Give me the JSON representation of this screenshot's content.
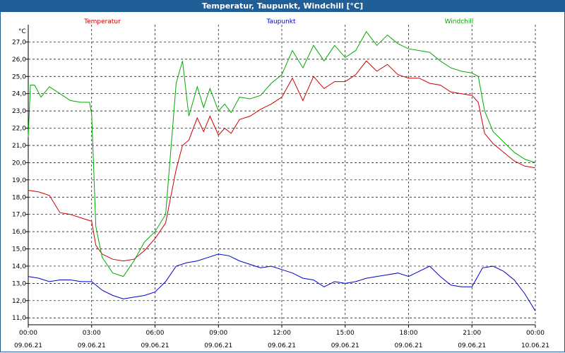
{
  "window": {
    "title": "Temperatur, Taupunkt, Windchill [°C]"
  },
  "colors": {
    "titlebar": "#1f5e96",
    "temperatur": "#cc0000",
    "taupunkt": "#0000cc",
    "windchill": "#00aa00",
    "grid": "#000000"
  },
  "chart_data": {
    "type": "line",
    "title": "Temperatur, Taupunkt, Windchill [°C]",
    "ylabel": "°C",
    "xlabel": "",
    "ylim": [
      10.6,
      28.0
    ],
    "xlim": [
      0,
      24
    ],
    "grid": true,
    "legend_position": "top",
    "y_ticks": [
      "11,0",
      "12,0",
      "13,0",
      "14,0",
      "15,0",
      "16,0",
      "17,0",
      "18,0",
      "19,0",
      "20,0",
      "21,0",
      "22,0",
      "23,0",
      "24,0",
      "25,0",
      "26,0",
      "27,0"
    ],
    "x_ticks": [
      {
        "time": "00:00",
        "date": "09.06.21"
      },
      {
        "time": "03:00",
        "date": "09.06.21"
      },
      {
        "time": "06:00",
        "date": "09.06.21"
      },
      {
        "time": "09:00",
        "date": "09.06.21"
      },
      {
        "time": "12:00",
        "date": "09.06.21"
      },
      {
        "time": "15:00",
        "date": "09.06.21"
      },
      {
        "time": "18:00",
        "date": "09.06.21"
      },
      {
        "time": "21:00",
        "date": "09.06.21"
      },
      {
        "time": "00:00",
        "date": "10.06.21"
      }
    ],
    "series": [
      {
        "name": "Temperatur",
        "color": "#cc0000",
        "x": [
          0,
          0.5,
          1,
          1.5,
          2,
          2.5,
          3,
          3.2,
          3.5,
          4,
          4.5,
          5,
          5.5,
          6,
          6.5,
          7,
          7.3,
          7.6,
          8,
          8.3,
          8.6,
          9,
          9.3,
          9.6,
          10,
          10.5,
          11,
          11.5,
          12,
          12.5,
          13,
          13.5,
          14,
          14.5,
          15,
          15.5,
          16,
          16.5,
          17,
          17.5,
          18,
          18.5,
          19,
          19.5,
          20,
          20.5,
          21,
          21.3,
          21.6,
          22,
          22.5,
          23,
          23.5,
          24
        ],
        "values": [
          18.4,
          18.3,
          18.1,
          17.1,
          17.0,
          16.8,
          16.6,
          15.2,
          14.7,
          14.4,
          14.3,
          14.4,
          14.9,
          15.6,
          16.5,
          19.6,
          21.0,
          21.3,
          22.6,
          21.8,
          22.7,
          21.6,
          22.0,
          21.7,
          22.5,
          22.7,
          23.1,
          23.4,
          23.8,
          24.9,
          23.6,
          25.0,
          24.3,
          24.7,
          24.7,
          25.1,
          25.9,
          25.3,
          25.7,
          25.1,
          24.9,
          24.9,
          24.6,
          24.5,
          24.1,
          24.0,
          23.9,
          23.5,
          21.7,
          21.1,
          20.6,
          20.1,
          19.8,
          19.7
        ]
      },
      {
        "name": "Taupunkt",
        "color": "#0000cc",
        "x": [
          0,
          0.5,
          1,
          1.5,
          2,
          2.5,
          3,
          3.5,
          4,
          4.5,
          5,
          5.5,
          6,
          6.5,
          7,
          7.5,
          8,
          8.5,
          9,
          9.5,
          10,
          10.5,
          11,
          11.5,
          12,
          12.5,
          13,
          13.5,
          14,
          14.5,
          15,
          15.5,
          16,
          16.5,
          17,
          17.5,
          18,
          18.5,
          19,
          19.5,
          20,
          20.5,
          21,
          21.5,
          22,
          22.5,
          23,
          23.5,
          24
        ],
        "values": [
          13.4,
          13.3,
          13.1,
          13.2,
          13.2,
          13.1,
          13.1,
          12.6,
          12.3,
          12.1,
          12.2,
          12.3,
          12.5,
          13.1,
          14.0,
          14.2,
          14.3,
          14.5,
          14.7,
          14.6,
          14.3,
          14.1,
          13.9,
          14.0,
          13.8,
          13.6,
          13.3,
          13.2,
          12.8,
          13.1,
          13.0,
          13.1,
          13.3,
          13.4,
          13.5,
          13.6,
          13.4,
          13.7,
          14.0,
          13.4,
          12.9,
          12.8,
          12.8,
          13.9,
          14.0,
          13.7,
          13.2,
          12.4,
          11.4
        ]
      },
      {
        "name": "Windchill",
        "color": "#00aa00",
        "x": [
          0,
          0.1,
          0.3,
          0.6,
          1,
          1.5,
          2,
          2.5,
          2.9,
          3.0,
          3.2,
          3.5,
          4,
          4.5,
          5,
          5.5,
          6,
          6.5,
          6.8,
          7.0,
          7.3,
          7.6,
          8,
          8.3,
          8.6,
          9,
          9.3,
          9.6,
          10,
          10.5,
          11,
          11.5,
          12,
          12.5,
          13,
          13.5,
          14,
          14.5,
          15,
          15.5,
          16,
          16.5,
          17,
          17.5,
          18,
          18.5,
          19,
          19.5,
          20,
          20.5,
          21,
          21.3,
          21.6,
          22,
          22.5,
          23,
          23.5,
          24
        ],
        "values": [
          21.5,
          24.5,
          24.5,
          23.8,
          24.4,
          24.0,
          23.6,
          23.5,
          23.5,
          22.8,
          16.3,
          14.5,
          13.6,
          13.4,
          14.3,
          15.4,
          16.0,
          17.0,
          21.5,
          24.6,
          25.9,
          22.7,
          24.4,
          23.2,
          24.3,
          23.0,
          23.4,
          22.9,
          23.8,
          23.7,
          23.9,
          24.6,
          25.1,
          26.5,
          25.5,
          26.8,
          25.9,
          26.8,
          26.1,
          26.5,
          27.6,
          26.8,
          27.4,
          26.9,
          26.6,
          26.5,
          26.4,
          25.9,
          25.5,
          25.3,
          25.2,
          25.0,
          23.0,
          21.8,
          21.2,
          20.6,
          20.2,
          20.0
        ]
      }
    ]
  }
}
